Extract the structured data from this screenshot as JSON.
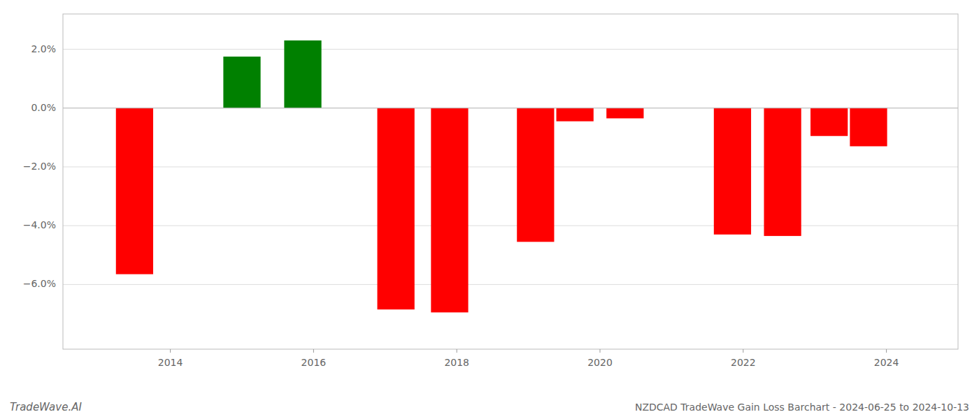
{
  "chart_data": {
    "type": "bar",
    "title": "NZDCAD TradeWave Gain Loss Barchart - 2024-06-25 to 2024-10-13",
    "annotations": [
      "TradeWave.AI"
    ],
    "x": [
      2013.5,
      2015.0,
      2015.85,
      2017.15,
      2017.9,
      2019.1,
      2019.65,
      2020.35,
      2021.85,
      2022.55,
      2023.2,
      2023.75
    ],
    "values": [
      -5.65,
      1.75,
      2.3,
      -6.85,
      -6.95,
      -4.55,
      -0.45,
      -0.35,
      -4.3,
      -4.35,
      -0.95,
      -1.3
    ],
    "colors": [
      "#ff0000",
      "#008000",
      "#008000",
      "#ff0000",
      "#ff0000",
      "#ff0000",
      "#ff0000",
      "#ff0000",
      "#ff0000",
      "#ff0000",
      "#ff0000",
      "#ff0000"
    ],
    "xlim": [
      2012.5,
      2025.0
    ],
    "xticks": [
      2014,
      2016,
      2018,
      2020,
      2022,
      2024
    ],
    "ylim": [
      -8.2,
      3.2
    ],
    "yticks": [
      {
        "value": -6.0,
        "label": "−6.0%"
      },
      {
        "value": -4.0,
        "label": "−4.0%"
      },
      {
        "value": -2.0,
        "label": "−2.0%"
      },
      {
        "value": 0.0,
        "label": "0.0%"
      },
      {
        "value": 2.0,
        "label": "2.0%"
      }
    ],
    "grid": true
  }
}
